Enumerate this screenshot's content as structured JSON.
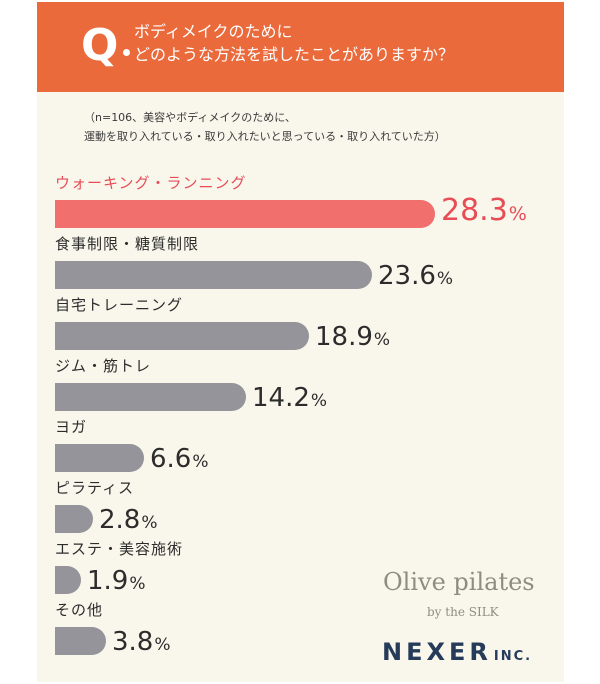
{
  "header": {
    "q_mark": "Q",
    "question_line1": "ボディメイクのために",
    "question_line2": "どのような方法を試したことがありますか？"
  },
  "note": {
    "line1": "（n=106、美容やボディメイクのために、",
    "line2": "運動を取り入れている・取り入れたいと思っている・取り入れていた方）"
  },
  "colors": {
    "header_bg": "#ea6a3c",
    "highlight": "#e64d56",
    "highlight_bar": "#f16f6d",
    "bar": "#95949a",
    "background": "#f9f7ec"
  },
  "chart_data": {
    "type": "bar",
    "orientation": "horizontal",
    "unit": "%",
    "categories": [
      "ウォーキング・ランニング",
      "食事制限・糖質制限",
      "自宅トレーニング",
      "ジム・筋トレ",
      "ヨガ",
      "ピラティス",
      "エステ・美容施術",
      "その他"
    ],
    "values": [
      28.3,
      23.6,
      18.9,
      14.2,
      6.6,
      2.8,
      1.9,
      3.8
    ],
    "value_labels": [
      "28.3",
      "23.6",
      "18.9",
      "14.2",
      "6.6",
      "2.8",
      "1.9",
      "3.8"
    ],
    "highlighted_index": 0
  },
  "brand": {
    "olive": "Olive pilates",
    "by": "by the SILK",
    "nexer": "NEXER",
    "inc": "INC."
  }
}
